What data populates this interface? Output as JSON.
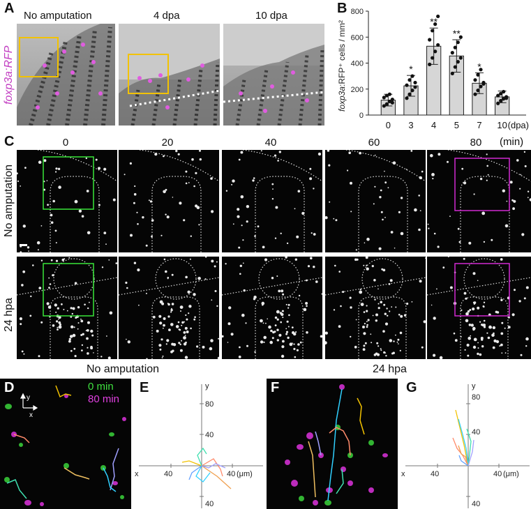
{
  "panel_letters": {
    "a": "A",
    "b": "B",
    "c": "C",
    "d": "D",
    "e": "E",
    "f": "F",
    "g": "G"
  },
  "panel_a": {
    "titles": [
      "No amputation",
      "4 dpa",
      "10 dpa"
    ],
    "ylabel": "foxp3a:RFP"
  },
  "panel_c": {
    "times": [
      "0",
      "20",
      "40",
      "60",
      "80"
    ],
    "unit": "(min)",
    "rows": [
      "No amputation",
      "24 hpa"
    ]
  },
  "panel_d": {
    "title": "No amputation",
    "legend_0": "0 min",
    "legend_80": "80 min",
    "axis_y": "y",
    "axis_x": "x"
  },
  "panel_f": {
    "title": "24 hpa"
  },
  "panel_e": {
    "y": "y",
    "x": "x",
    "t80": "80",
    "t40": "40",
    "tx40l": "40",
    "tx40r": "40",
    "ty40b": "40",
    "unit": "(μm)"
  },
  "panel_g": {
    "y": "y",
    "x": "x",
    "t80": "80",
    "t40": "40",
    "tx40l": "40",
    "tx40r": "40",
    "ty40b": "40",
    "unit": "(μm)"
  },
  "colors": {
    "green_box": "#39e639",
    "magenta_box": "#d12ad1",
    "yellow_box": "#f2c200",
    "bar_fill": "#d6d6d6"
  },
  "chart_data": {
    "type": "bar",
    "ylabel": "foxp3a:RFP⁺ cells / mm²",
    "xunit": "(dpa)",
    "categories": [
      "0",
      "3",
      "4",
      "5",
      "7",
      "10"
    ],
    "values": [
      115,
      225,
      530,
      455,
      245,
      140
    ],
    "errors": [
      45,
      80,
      140,
      125,
      80,
      45
    ],
    "significance": [
      "",
      "*",
      "**",
      "**",
      "*",
      ""
    ],
    "ylim": [
      0,
      800
    ],
    "yticks": [
      0,
      200,
      400,
      600,
      800
    ],
    "points": [
      [
        70,
        85,
        105,
        120,
        135,
        150,
        160,
        95
      ],
      [
        130,
        160,
        190,
        215,
        230,
        270,
        300,
        250
      ],
      [
        390,
        440,
        490,
        540,
        580,
        650,
        700,
        760
      ],
      [
        320,
        370,
        410,
        440,
        480,
        520,
        560,
        600
      ],
      [
        160,
        190,
        220,
        250,
        270,
        310,
        350,
        240
      ],
      [
        90,
        110,
        125,
        140,
        150,
        165,
        180,
        130
      ]
    ]
  }
}
